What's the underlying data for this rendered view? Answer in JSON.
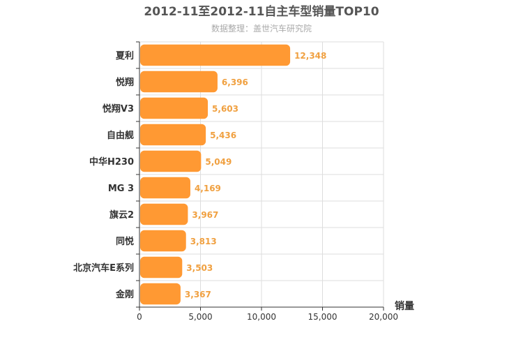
{
  "chart_data": {
    "type": "bar",
    "orientation": "horizontal",
    "title": "2012-11至2012-11自主车型销量TOP10",
    "subtitle": "数据整理：盖世汽车研究院",
    "categories": [
      "夏利",
      "悦翔",
      "悦翔V3",
      "自由舰",
      "中华H230",
      "MG 3",
      "旗云2",
      "同悦",
      "北京汽车E系列",
      "金刚"
    ],
    "values": [
      12348,
      6396,
      5603,
      5436,
      5049,
      4169,
      3967,
      3813,
      3503,
      3367
    ],
    "value_labels": [
      "12,348",
      "6,396",
      "5,603",
      "5,436",
      "5,049",
      "4,169",
      "3,967",
      "3,813",
      "3,503",
      "3,367"
    ],
    "xlabel": "销量",
    "ylabel": "",
    "xlim": [
      0,
      20000
    ],
    "x_ticks": [
      0,
      5000,
      10000,
      15000,
      20000
    ],
    "x_tick_labels": [
      "0",
      "5,000",
      "10,000",
      "15,000",
      "20,000"
    ],
    "grid": true,
    "legend": "none",
    "bar_color": "#ff9933",
    "label_color": "#f0a040"
  }
}
